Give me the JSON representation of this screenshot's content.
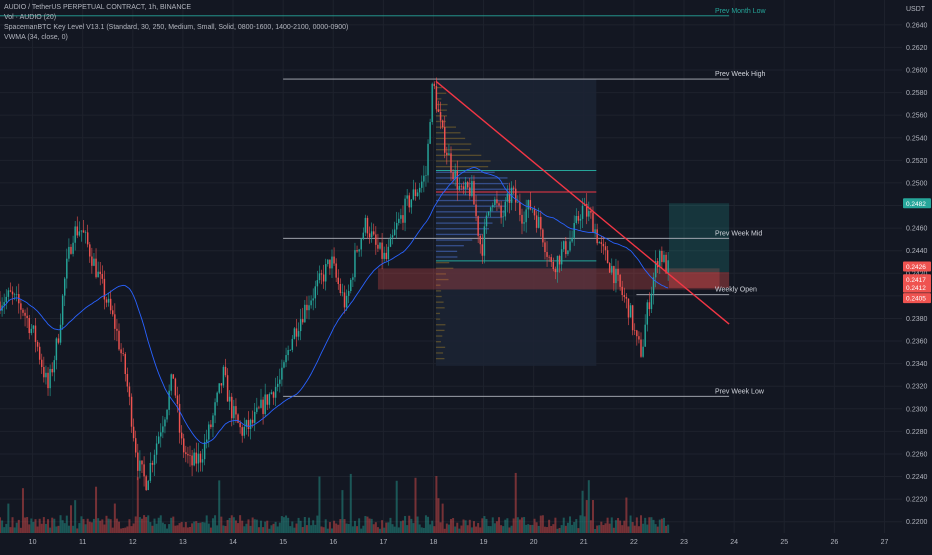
{
  "legend": {
    "title": "AUDIO / TetherUS PERPETUAL CONTRACT, 1h, BINANCE",
    "vol": "Vol · AUDIO (20)",
    "indicator": "SpacemanBTC Key Level V13.1 (Standard, 30, 250, Medium, Small, Solid, 0800-1600, 1400-2100, 0000-0900)",
    "vwma": "VWMA (34, close, 0)"
  },
  "currency": "USDT",
  "colors": {
    "background": "#131722",
    "up": "#26a69a",
    "down": "#ef5350",
    "vwma": "#2962ff",
    "trendline": "#f23645",
    "level_line": "#b2b5be",
    "month_line": "#26a69a",
    "grid": "#1e222d",
    "axis_text": "#b2b5be"
  },
  "chart_data": {
    "type": "candlestick",
    "timeframe": "1h",
    "ylim": [
      0.219,
      0.2662
    ],
    "y_ticks": [
      "0.2640",
      "0.2620",
      "0.2600",
      "0.2580",
      "0.2560",
      "0.2540",
      "0.2520",
      "0.2500",
      "0.2480",
      "0.2460",
      "0.2440",
      "0.2420",
      "0.2400",
      "0.2380",
      "0.2360",
      "0.2340",
      "0.2320",
      "0.2300",
      "0.2280",
      "0.2260",
      "0.2240",
      "0.2220",
      "0.2200"
    ],
    "x_ticks": [
      "10",
      "11",
      "12",
      "13",
      "14",
      "15",
      "16",
      "17",
      "18",
      "19",
      "20",
      "21",
      "22",
      "23",
      "24",
      "25",
      "26",
      "27"
    ],
    "x_ticks_day": [
      10,
      11,
      12,
      13,
      14,
      15,
      16,
      17,
      18,
      19,
      20,
      21,
      22,
      23,
      24,
      25,
      26,
      27
    ],
    "x_range_day": [
      9.35,
      27.35
    ],
    "price_path": [
      [
        9.35,
        0.2395
      ],
      [
        9.6,
        0.24
      ],
      [
        9.85,
        0.2388
      ],
      [
        10.1,
        0.2362
      ],
      [
        10.35,
        0.2318
      ],
      [
        10.55,
        0.2363
      ],
      [
        10.7,
        0.242
      ],
      [
        10.85,
        0.2456
      ],
      [
        11.0,
        0.246
      ],
      [
        11.2,
        0.2438
      ],
      [
        11.35,
        0.2418
      ],
      [
        11.5,
        0.2398
      ],
      [
        11.7,
        0.2372
      ],
      [
        11.9,
        0.233
      ],
      [
        12.05,
        0.2282
      ],
      [
        12.15,
        0.225
      ],
      [
        12.3,
        0.2235
      ],
      [
        12.5,
        0.2268
      ],
      [
        12.7,
        0.23
      ],
      [
        12.85,
        0.233
      ],
      [
        13.0,
        0.227
      ],
      [
        13.2,
        0.225
      ],
      [
        13.4,
        0.2258
      ],
      [
        13.6,
        0.2285
      ],
      [
        13.85,
        0.233
      ],
      [
        14.0,
        0.23
      ],
      [
        14.2,
        0.228
      ],
      [
        14.4,
        0.2285
      ],
      [
        14.6,
        0.23
      ],
      [
        14.85,
        0.2318
      ],
      [
        15.0,
        0.2325
      ],
      [
        15.2,
        0.2362
      ],
      [
        15.5,
        0.2392
      ],
      [
        15.75,
        0.241
      ],
      [
        16.0,
        0.2432
      ],
      [
        16.1,
        0.2415
      ],
      [
        16.3,
        0.239
      ],
      [
        16.5,
        0.244
      ],
      [
        16.7,
        0.2465
      ],
      [
        16.9,
        0.2442
      ],
      [
        17.1,
        0.2432
      ],
      [
        17.3,
        0.246
      ],
      [
        17.5,
        0.248
      ],
      [
        17.7,
        0.2493
      ],
      [
        17.9,
        0.2508
      ],
      [
        18.0,
        0.258
      ],
      [
        18.05,
        0.2585
      ],
      [
        18.2,
        0.2545
      ],
      [
        18.4,
        0.2515
      ],
      [
        18.6,
        0.249
      ],
      [
        18.8,
        0.2495
      ],
      [
        19.0,
        0.244
      ],
      [
        19.2,
        0.249
      ],
      [
        19.4,
        0.2468
      ],
      [
        19.6,
        0.2492
      ],
      [
        19.8,
        0.2472
      ],
      [
        20.0,
        0.248
      ],
      [
        20.2,
        0.2458
      ],
      [
        20.4,
        0.2425
      ],
      [
        20.6,
        0.2438
      ],
      [
        20.8,
        0.245
      ],
      [
        21.0,
        0.2478
      ],
      [
        21.2,
        0.2468
      ],
      [
        21.4,
        0.244
      ],
      [
        21.6,
        0.2425
      ],
      [
        21.8,
        0.2402
      ],
      [
        21.95,
        0.2388
      ],
      [
        22.1,
        0.2358
      ],
      [
        22.2,
        0.235
      ],
      [
        22.3,
        0.2385
      ],
      [
        22.45,
        0.242
      ],
      [
        22.55,
        0.244
      ],
      [
        22.7,
        0.2424
      ]
    ],
    "annotations": [
      {
        "text": "Prev Month Low",
        "price": 0.2648
      },
      {
        "text": "Prev Week High",
        "price": 0.2592
      },
      {
        "text": "Prev Week Mid",
        "price": 0.2451
      },
      {
        "text": "Weekly Open",
        "price": 0.2401
      },
      {
        "text": "Prev Week Low",
        "price": 0.2311
      }
    ],
    "levels": [
      {
        "name": "Prev Month Low",
        "price": 0.2648,
        "from_day": 9.35,
        "to_day": 23.9
      },
      {
        "name": "Prev Week High",
        "price": 0.2592,
        "from_day": 15.0,
        "to_day": 23.9
      },
      {
        "name": "Prev Week Mid",
        "price": 0.2451,
        "from_day": 15.0,
        "to_day": 23.9
      },
      {
        "name": "Weekly Open",
        "price": 0.2401,
        "from_day": 22.05,
        "to_day": 23.9
      },
      {
        "name": "Prev Week Low",
        "price": 0.2311,
        "from_day": 15.0,
        "to_day": 23.9
      }
    ],
    "horizontal_lines": [
      {
        "price": 0.2511,
        "from_day": 18.05,
        "to_day": 21.25,
        "color": "#26a69a"
      },
      {
        "price": 0.2492,
        "from_day": 18.05,
        "to_day": 21.25,
        "color": "#f23645"
      },
      {
        "price": 0.2431,
        "from_day": 18.05,
        "to_day": 21.25,
        "color": "#26a69a"
      }
    ],
    "trendline": {
      "from": [
        18.05,
        0.259
      ],
      "to": [
        23.9,
        0.2375
      ]
    },
    "price_tags": [
      {
        "text": "0.2482",
        "price": 0.2482,
        "color": "#26a69a"
      },
      {
        "text": "0.2426",
        "price": 0.2426,
        "color": "#ef5350"
      },
      {
        "text": "0.2417",
        "price": 0.2416,
        "color": "#ef5350"
      },
      {
        "text": "0.2412",
        "price": 0.241,
        "color": "#ef5350"
      },
      {
        "text": "0.2405",
        "price": 0.2402,
        "color": "#ef5350"
      }
    ]
  }
}
